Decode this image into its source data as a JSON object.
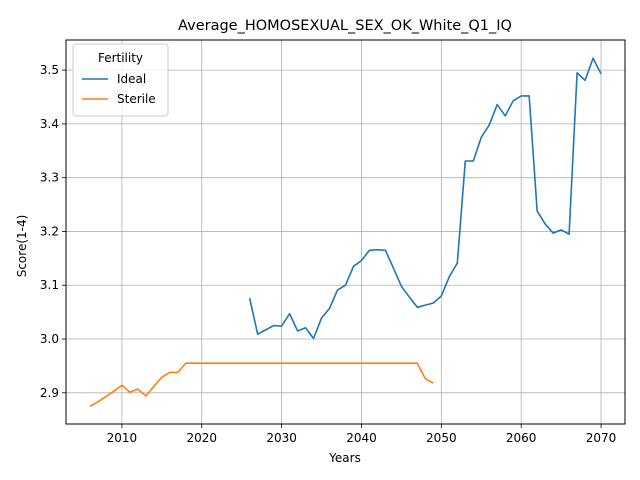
{
  "chart_data": {
    "type": "line",
    "title": "Average_HOMOSEXUAL_SEX_OK_White_Q1_IQ",
    "xlabel": "Years",
    "ylabel": "Score(1-4)",
    "xlim": [
      2003,
      2073
    ],
    "ylim": [
      2.842,
      3.556
    ],
    "xticks": [
      2010,
      2020,
      2030,
      2040,
      2050,
      2060,
      2070
    ],
    "yticks": [
      2.9,
      3.0,
      3.1,
      3.2,
      3.3,
      3.4,
      3.5
    ],
    "ytick_labels": [
      "2.9",
      "3.0",
      "3.1",
      "3.2",
      "3.3",
      "3.4",
      "3.5"
    ],
    "grid": true,
    "legend": {
      "title": "Fertility",
      "position": "top-left"
    },
    "series": [
      {
        "name": "Ideal",
        "color": "#1f77b4",
        "x": [
          2026,
          2027,
          2028,
          2029,
          2030,
          2031,
          2032,
          2033,
          2034,
          2035,
          2036,
          2037,
          2038,
          2039,
          2040,
          2041,
          2042,
          2043,
          2044,
          2045,
          2046,
          2047,
          2048,
          2049,
          2050,
          2051,
          2052,
          2053,
          2054,
          2055,
          2056,
          2057,
          2058,
          2059,
          2060,
          2061,
          2062,
          2063,
          2064,
          2065,
          2066,
          2067,
          2068,
          2069,
          2070
        ],
        "y": [
          3.076,
          3.009,
          3.017,
          3.025,
          3.024,
          3.047,
          3.015,
          3.021,
          3.001,
          3.039,
          3.057,
          3.091,
          3.1,
          3.135,
          3.146,
          3.165,
          3.166,
          3.165,
          3.132,
          3.098,
          3.078,
          3.059,
          3.063,
          3.067,
          3.08,
          3.116,
          3.141,
          3.331,
          3.331,
          3.375,
          3.398,
          3.436,
          3.415,
          3.443,
          3.452,
          3.452,
          3.238,
          3.214,
          3.197,
          3.203,
          3.195,
          3.495,
          3.481,
          3.522,
          3.493
        ]
      },
      {
        "name": "Sterile",
        "color": "#ff7f0e",
        "x": [
          2006,
          2007,
          2008,
          2009,
          2010,
          2011,
          2012,
          2013,
          2014,
          2015,
          2016,
          2017,
          2018,
          2019,
          2020,
          2021,
          2022,
          2023,
          2024,
          2025,
          2026,
          2027,
          2028,
          2029,
          2030,
          2031,
          2032,
          2033,
          2034,
          2035,
          2036,
          2037,
          2038,
          2039,
          2040,
          2041,
          2042,
          2043,
          2044,
          2045,
          2046,
          2047,
          2048,
          2049
        ],
        "y": [
          2.875,
          2.883,
          2.893,
          2.903,
          2.914,
          2.901,
          2.907,
          2.894,
          2.912,
          2.929,
          2.938,
          2.938,
          2.955,
          2.955,
          2.955,
          2.955,
          2.955,
          2.955,
          2.955,
          2.955,
          2.955,
          2.955,
          2.955,
          2.955,
          2.955,
          2.955,
          2.955,
          2.955,
          2.955,
          2.955,
          2.955,
          2.955,
          2.955,
          2.955,
          2.955,
          2.955,
          2.955,
          2.955,
          2.955,
          2.955,
          2.955,
          2.955,
          2.926,
          2.918
        ]
      }
    ]
  }
}
